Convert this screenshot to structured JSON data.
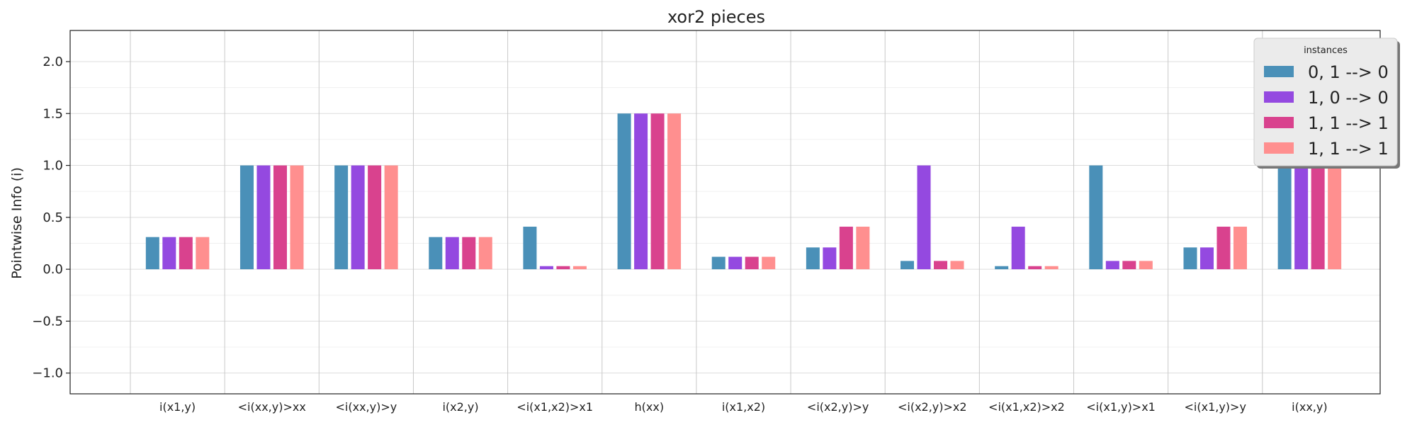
{
  "chart_data": {
    "type": "bar",
    "title": "xor2 pieces",
    "xlabel": "",
    "ylabel": "Pointwise Info (i)",
    "ylim": [
      -1.2,
      2.3
    ],
    "yticks": [
      -1.0,
      -0.5,
      0.0,
      0.5,
      1.0,
      1.5,
      2.0
    ],
    "ytick_labels": [
      "−1.0",
      "−0.5",
      "0.0",
      "0.5",
      "1.0",
      "1.5",
      "2.0"
    ],
    "grid": true,
    "legend": {
      "title": "instances",
      "placement": "top-right"
    },
    "categories": [
      "i(x1,y)",
      "<i(xx,y)>xx",
      "<i(xx,y)>y",
      "i(x2,y)",
      "<i(x1,x2)>x1",
      "h(xx)",
      "i(x1,x2)",
      "<i(x2,y)>y",
      "<i(x2,y)>x2",
      "<i(x1,x2)>x2",
      "<i(x1,y)>x1",
      "<i(x1,y)>y",
      "i(xx,y)"
    ],
    "series": [
      {
        "name": "0, 1 --> 0",
        "color": "#4a90b8",
        "values": [
          0.31,
          1.0,
          1.0,
          0.31,
          0.41,
          1.5,
          0.12,
          0.21,
          0.08,
          0.03,
          1.0,
          0.21,
          1.0
        ]
      },
      {
        "name": "1, 0 --> 0",
        "color": "#9449e0",
        "values": [
          0.31,
          1.0,
          1.0,
          0.31,
          0.03,
          1.5,
          0.12,
          0.21,
          1.0,
          0.41,
          0.08,
          0.21,
          1.0
        ]
      },
      {
        "name": "1, 1 --> 1",
        "color": "#d9428e",
        "values": [
          0.31,
          1.0,
          1.0,
          0.31,
          0.03,
          1.5,
          0.12,
          0.41,
          0.08,
          0.03,
          0.08,
          0.41,
          1.0
        ]
      },
      {
        "name": "1, 1 --> 1",
        "color": "#ff8f8f",
        "values": [
          0.31,
          1.0,
          1.0,
          0.31,
          0.03,
          1.5,
          0.12,
          0.41,
          0.08,
          0.03,
          0.08,
          0.41,
          1.0
        ]
      }
    ]
  }
}
